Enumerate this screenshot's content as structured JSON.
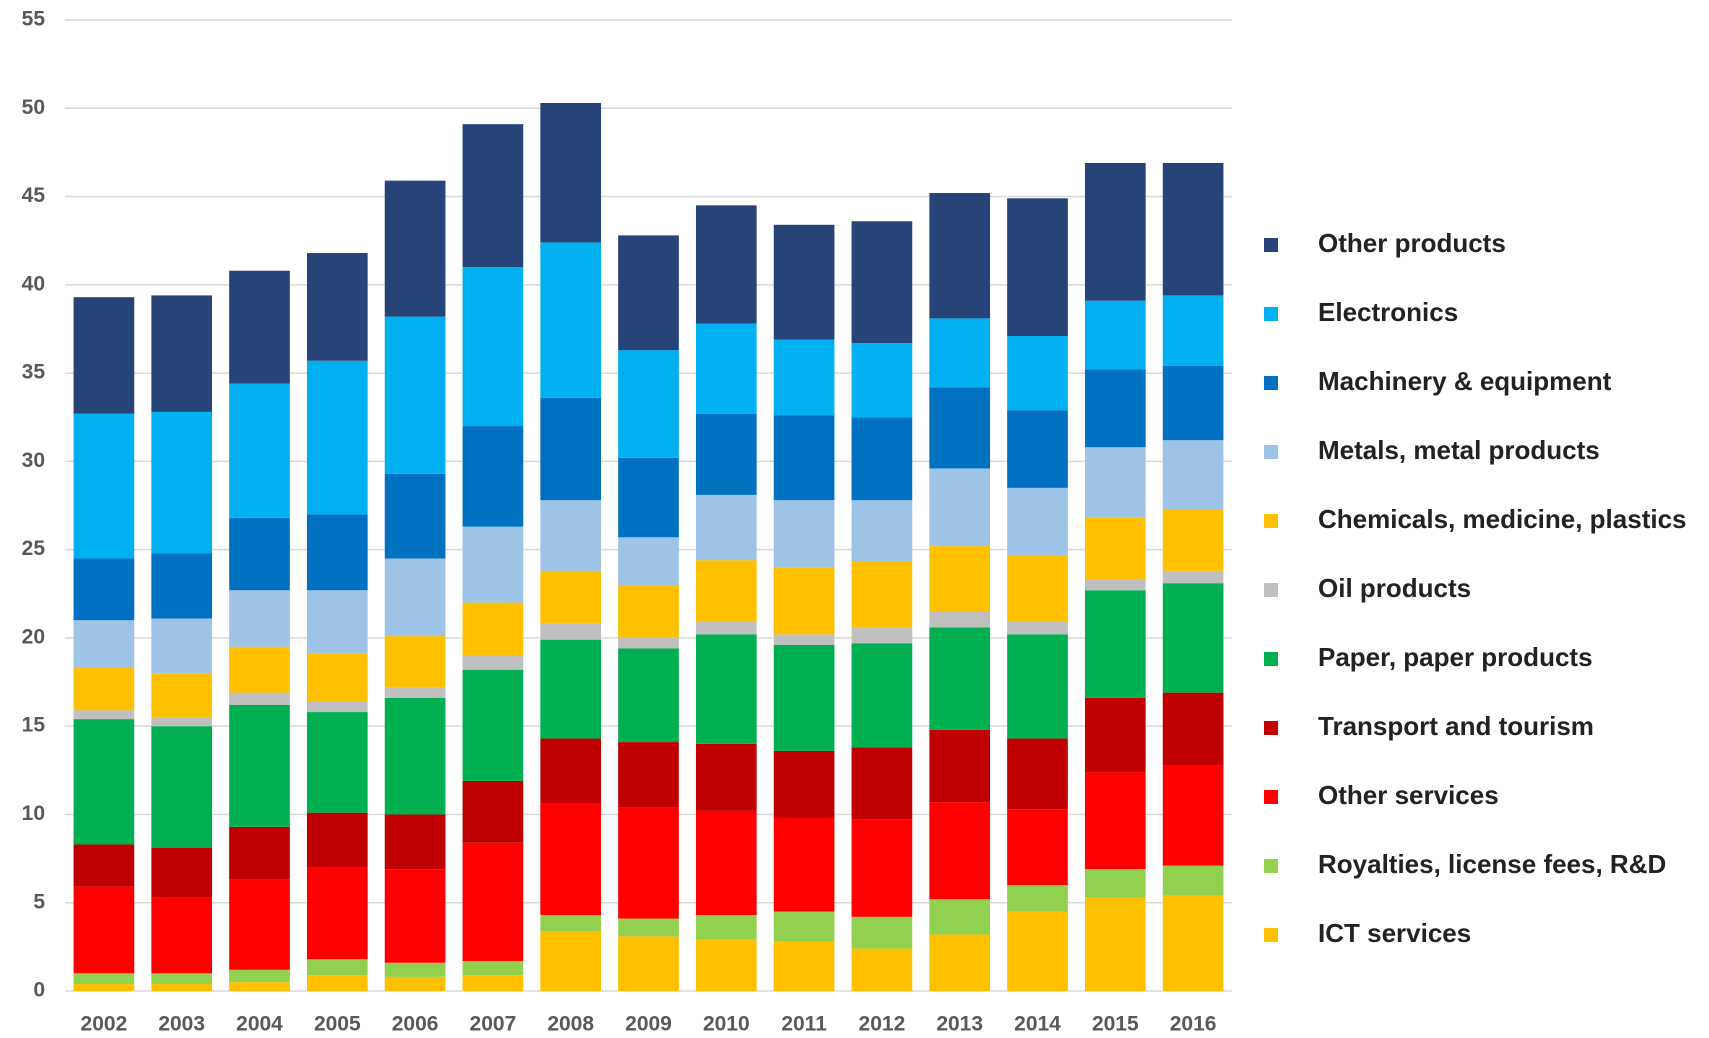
{
  "chart_data": {
    "type": "stacked_bar",
    "categories": [
      "2002",
      "2003",
      "2004",
      "2005",
      "2006",
      "2007",
      "2008",
      "2009",
      "2010",
      "2011",
      "2012",
      "2013",
      "2014",
      "2015",
      "2016"
    ],
    "series": [
      {
        "name": "ICT services",
        "color": "#ffc000",
        "values": [
          0.4,
          0.4,
          0.5,
          0.9,
          0.8,
          0.9,
          3.4,
          3.1,
          2.9,
          2.8,
          2.4,
          3.2,
          4.5,
          5.3,
          5.4
        ]
      },
      {
        "name": "Royalties, license fees, R&D",
        "color": "#92d050",
        "values": [
          0.6,
          0.6,
          0.7,
          0.9,
          0.8,
          0.8,
          0.9,
          1.0,
          1.4,
          1.7,
          1.8,
          2.0,
          1.5,
          1.6,
          1.7
        ]
      },
      {
        "name": "Other services",
        "color": "#ff0000",
        "values": [
          4.9,
          4.3,
          5.1,
          5.2,
          5.3,
          6.7,
          6.3,
          6.3,
          5.9,
          5.3,
          5.5,
          5.5,
          4.3,
          5.5,
          5.7
        ]
      },
      {
        "name": "Transport and tourism",
        "color": "#c00000",
        "values": [
          2.4,
          2.8,
          3.0,
          3.1,
          3.1,
          3.5,
          3.7,
          3.7,
          3.8,
          3.8,
          4.1,
          4.1,
          4.0,
          4.2,
          4.1
        ]
      },
      {
        "name": "Paper, paper products",
        "color": "#00b050",
        "values": [
          7.1,
          6.9,
          6.9,
          5.7,
          6.6,
          6.3,
          5.6,
          5.3,
          6.2,
          6.0,
          5.9,
          5.8,
          5.9,
          6.1,
          6.2
        ]
      },
      {
        "name": "Oil products",
        "color": "#bfbfbf",
        "values": [
          0.5,
          0.5,
          0.7,
          0.6,
          0.6,
          0.8,
          0.9,
          0.6,
          0.7,
          0.6,
          0.9,
          0.9,
          0.7,
          0.6,
          0.7
        ]
      },
      {
        "name": "Chemicals, medicine, plastics",
        "color": "#ffc000",
        "values": [
          2.4,
          2.5,
          2.6,
          2.7,
          2.9,
          3.0,
          3.0,
          3.0,
          3.5,
          3.8,
          3.7,
          3.7,
          3.8,
          3.5,
          3.5
        ]
      },
      {
        "name": "Metals, metal products",
        "color": "#9dc3e6",
        "values": [
          2.7,
          3.1,
          3.2,
          3.6,
          4.4,
          4.3,
          4.0,
          2.7,
          3.7,
          3.8,
          3.5,
          4.4,
          3.8,
          4.0,
          3.9
        ]
      },
      {
        "name": "Machinery & equipment",
        "color": "#0070c0",
        "values": [
          3.5,
          3.7,
          4.1,
          4.3,
          4.8,
          5.7,
          5.8,
          4.5,
          4.6,
          4.8,
          4.7,
          4.6,
          4.4,
          4.4,
          4.2
        ]
      },
      {
        "name": "Electronics",
        "color": "#00b0f0",
        "values": [
          8.2,
          8.0,
          7.6,
          8.7,
          8.9,
          9.0,
          8.8,
          6.1,
          5.1,
          4.3,
          4.2,
          3.9,
          4.2,
          3.9,
          4.0
        ]
      },
      {
        "name": "Other products",
        "color": "#264478",
        "values": [
          6.6,
          6.6,
          6.4,
          6.1,
          7.7,
          8.1,
          7.9,
          6.5,
          6.7,
          6.5,
          6.9,
          7.1,
          7.8,
          7.8,
          7.5
        ]
      }
    ],
    "ylim": [
      0,
      55
    ],
    "yticks": [
      0,
      5,
      10,
      15,
      20,
      25,
      30,
      35,
      40,
      45,
      50,
      55
    ],
    "grid": true,
    "legend": "right"
  }
}
